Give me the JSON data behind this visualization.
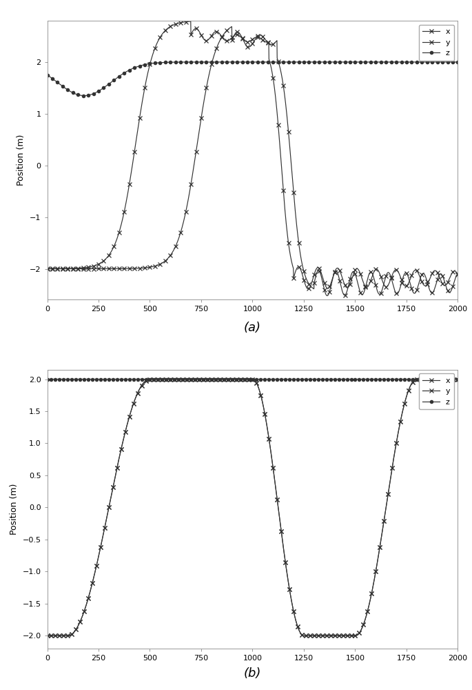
{
  "plot_a": {
    "title": "(a)",
    "ylabel": "Position (m)",
    "xlim": [
      0,
      2000
    ],
    "ylim": [
      -2.6,
      2.8
    ],
    "xticks": [
      0,
      250,
      500,
      750,
      1000,
      1250,
      1500,
      1750,
      2000
    ],
    "yticks": [
      -2,
      -1,
      0,
      1,
      2
    ],
    "line_color": "#333333",
    "marker_size": 4,
    "marker_every": 25
  },
  "plot_b": {
    "title": "(b)",
    "ylabel": "Position (m)",
    "xlim": [
      0,
      2000
    ],
    "ylim": [
      -2.2,
      2.15
    ],
    "xticks": [
      0,
      250,
      500,
      750,
      1000,
      1250,
      1500,
      1750,
      2000
    ],
    "yticks": [
      -2.0,
      -1.5,
      -1.0,
      -0.5,
      0.0,
      0.5,
      1.0,
      1.5,
      2.0
    ],
    "line_color": "#333333",
    "marker_size": 4,
    "marker_every": 20
  }
}
